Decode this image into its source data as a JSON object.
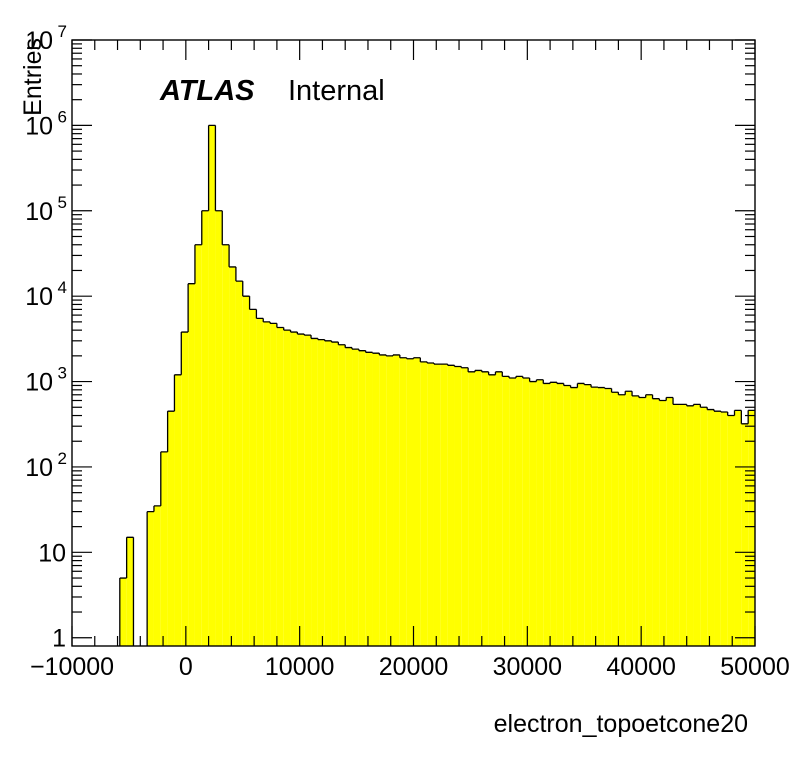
{
  "chart_data": {
    "type": "bar",
    "style": "histogram-step-filled",
    "fill_color": "#ffff00",
    "line_color": "#000000",
    "xlabel": "electron_topoetcone20",
    "ylabel": "Entries",
    "label_main": "ATLAS",
    "label_sub": "Internal",
    "xlim": [
      -10000,
      50000
    ],
    "ylim": [
      0.8,
      10000000
    ],
    "y_scale": "log",
    "grid": false,
    "bin_width": 600,
    "bin_start": -10000,
    "values": [
      0,
      0,
      0,
      0,
      0,
      0,
      0,
      5,
      15,
      0,
      0,
      30,
      35,
      150,
      450,
      1200,
      3800,
      14000,
      40000,
      100000,
      1000000,
      100000,
      40000,
      22000,
      15000,
      10000,
      7000,
      5500,
      5000,
      4800,
      4300,
      4000,
      3800,
      3600,
      3500,
      3200,
      3100,
      3000,
      2900,
      2700,
      2500,
      2400,
      2300,
      2200,
      2150,
      2050,
      2000,
      2050,
      1900,
      1850,
      1900,
      1700,
      1650,
      1600,
      1600,
      1550,
      1500,
      1450,
      1300,
      1350,
      1300,
      1200,
      1300,
      1150,
      1100,
      1150,
      1100,
      1000,
      1050,
      950,
      980,
      950,
      900,
      850,
      950,
      920,
      860,
      850,
      830,
      750,
      700,
      770,
      680,
      650,
      700,
      630,
      600,
      650,
      540,
      540,
      520,
      540,
      500,
      470,
      450,
      440,
      400,
      460,
      320,
      460,
      360,
      320
    ],
    "xticks": [
      -10000,
      0,
      10000,
      20000,
      30000,
      40000,
      50000
    ],
    "xtick_labels": [
      "−10000",
      "0",
      "10000",
      "20000",
      "30000",
      "40000",
      "50000"
    ],
    "yticks": [
      {
        "value": 1,
        "base": "1",
        "exp": ""
      },
      {
        "value": 10,
        "base": "10",
        "exp": ""
      },
      {
        "value": 100,
        "base": "10",
        "exp": "2"
      },
      {
        "value": 1000,
        "base": "10",
        "exp": "3"
      },
      {
        "value": 10000,
        "base": "10",
        "exp": "4"
      },
      {
        "value": 100000,
        "base": "10",
        "exp": "5"
      },
      {
        "value": 1000000,
        "base": "10",
        "exp": "6"
      },
      {
        "value": 10000000,
        "base": "10",
        "exp": "7"
      }
    ]
  }
}
